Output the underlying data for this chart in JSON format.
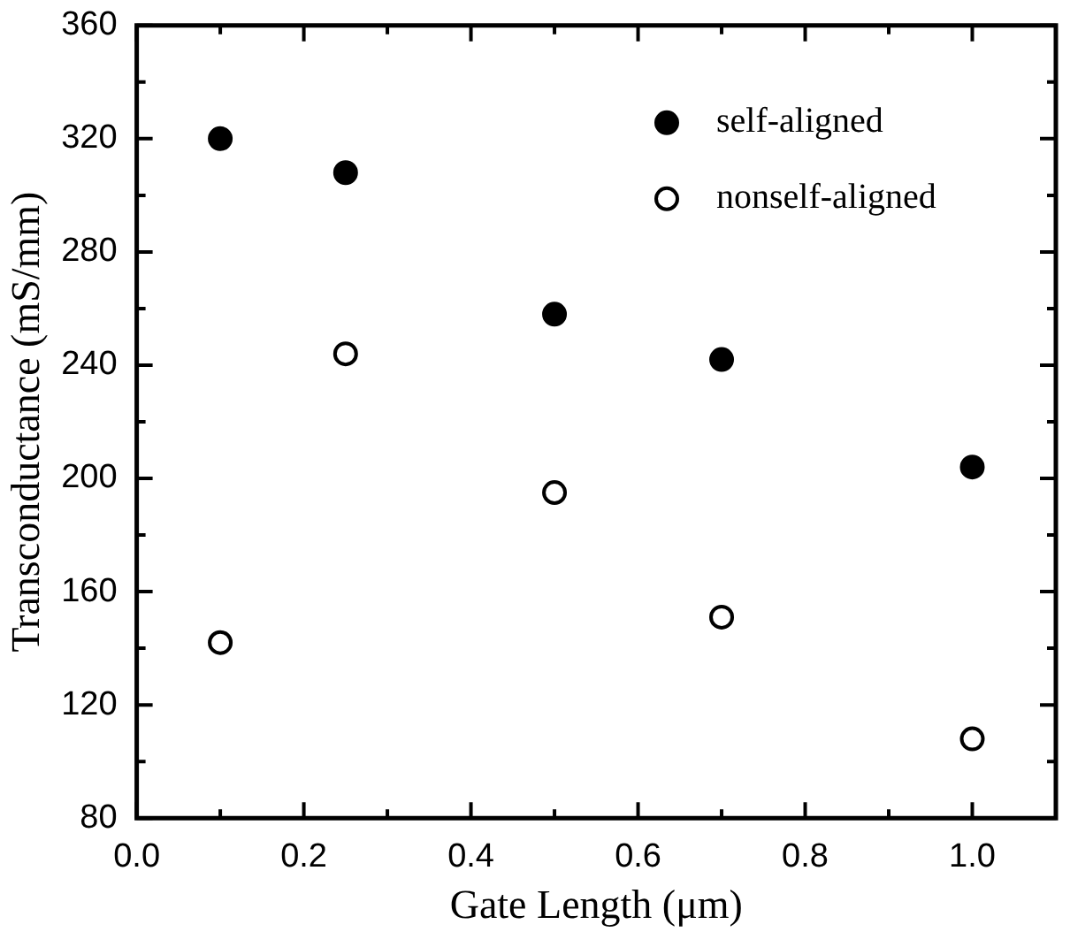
{
  "chart_data": {
    "type": "scatter",
    "xlabel": "Gate Length (μm)",
    "ylabel": "Transconductance (mS/mm)",
    "xlim": [
      0,
      1.1
    ],
    "ylim": [
      80,
      360
    ],
    "xticks": [
      {
        "value": 0,
        "label": "0.0"
      },
      {
        "value": 0.1,
        "label": null
      },
      {
        "value": 0.2,
        "label": "0.2"
      },
      {
        "value": 0.3,
        "label": null
      },
      {
        "value": 0.4,
        "label": "0.4"
      },
      {
        "value": 0.5,
        "label": null
      },
      {
        "value": 0.6,
        "label": "0.6"
      },
      {
        "value": 0.7,
        "label": null
      },
      {
        "value": 0.8,
        "label": "0.8"
      },
      {
        "value": 0.9,
        "label": null
      },
      {
        "value": 1,
        "label": "1.0"
      }
    ],
    "yticks": [
      80,
      {
        "value": 100,
        "label": null
      },
      120,
      {
        "value": 140,
        "label": null
      },
      160,
      {
        "value": 180,
        "label": null
      },
      200,
      {
        "value": 220,
        "label": null
      },
      240,
      {
        "value": 260,
        "label": null
      },
      280,
      {
        "value": 300,
        "label": null
      },
      320,
      {
        "value": 340,
        "label": null
      },
      360
    ],
    "x": [
      0.1,
      0.25,
      0.5,
      0.7,
      1.0
    ],
    "marker": "circle",
    "legend": "top right",
    "series": [
      {
        "name": "self-aligned",
        "color": "#000000",
        "values": [
          320,
          308,
          258,
          242,
          204
        ]
      },
      {
        "name": "nonself-aligned",
        "color": "#000000",
        "values": [
          142,
          244,
          195,
          151,
          108
        ]
      }
    ]
  }
}
